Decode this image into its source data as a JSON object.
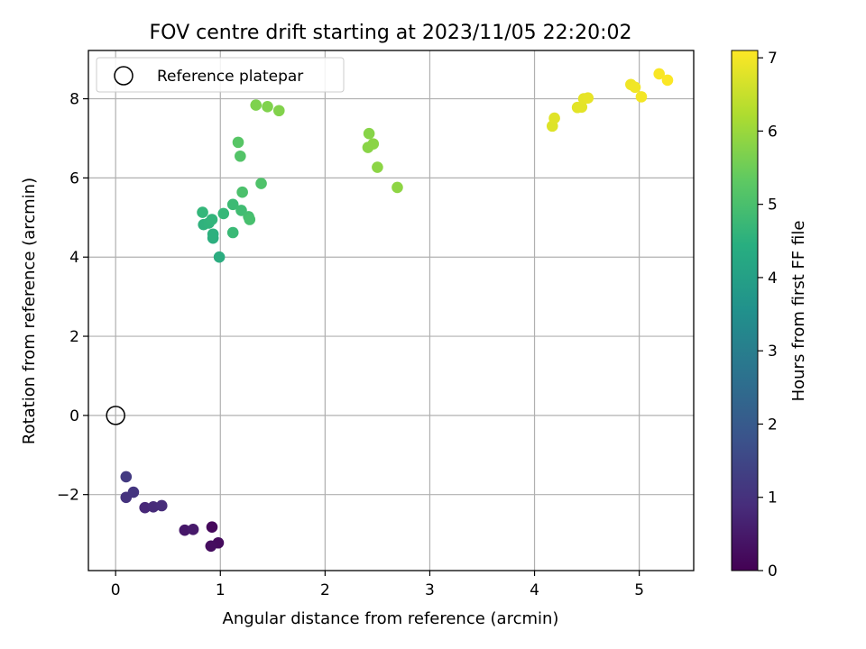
{
  "chart_data": {
    "type": "scatter",
    "title": "FOV centre drift starting at 2023/11/05 22:20:02",
    "xlabel": "Angular distance from reference (arcmin)",
    "ylabel": "Rotation from reference (arcmin)",
    "xlim": [
      -0.26,
      5.52
    ],
    "ylim": [
      -3.92,
      9.22
    ],
    "x_ticks": [
      0,
      1,
      2,
      3,
      4,
      5
    ],
    "y_ticks": [
      -2,
      0,
      2,
      4,
      6,
      8
    ],
    "grid": true,
    "legend": {
      "placement": "top-left",
      "entries": [
        "Reference platepar"
      ]
    },
    "reference": {
      "x": 0,
      "y": 0
    },
    "colorbar": {
      "label": "Hours from first FF file",
      "range": [
        0,
        7.1
      ],
      "ticks": [
        0,
        1,
        2,
        3,
        4,
        5,
        6,
        7
      ],
      "colormap": "viridis"
    },
    "points": [
      {
        "x": 0.92,
        "y": -2.82,
        "h": 0.15
      },
      {
        "x": 0.98,
        "y": -3.22,
        "h": 0.2
      },
      {
        "x": 0.91,
        "y": -3.3,
        "h": 0.25
      },
      {
        "x": 0.66,
        "y": -2.9,
        "h": 0.45
      },
      {
        "x": 0.74,
        "y": -2.88,
        "h": 0.5
      },
      {
        "x": 0.28,
        "y": -2.33,
        "h": 0.8
      },
      {
        "x": 0.36,
        "y": -2.31,
        "h": 0.85
      },
      {
        "x": 0.44,
        "y": -2.28,
        "h": 0.9
      },
      {
        "x": 0.1,
        "y": -2.07,
        "h": 1.05
      },
      {
        "x": 0.17,
        "y": -1.94,
        "h": 1.1
      },
      {
        "x": 0.1,
        "y": -1.55,
        "h": 1.2
      },
      {
        "x": 0.99,
        "y": 4.0,
        "h": 4.4
      },
      {
        "x": 0.93,
        "y": 4.48,
        "h": 4.45
      },
      {
        "x": 0.93,
        "y": 4.58,
        "h": 4.5
      },
      {
        "x": 0.84,
        "y": 4.82,
        "h": 4.55
      },
      {
        "x": 0.89,
        "y": 4.86,
        "h": 4.6
      },
      {
        "x": 0.92,
        "y": 4.95,
        "h": 4.65
      },
      {
        "x": 0.83,
        "y": 5.13,
        "h": 4.7
      },
      {
        "x": 1.03,
        "y": 5.1,
        "h": 4.75
      },
      {
        "x": 1.12,
        "y": 4.62,
        "h": 4.8
      },
      {
        "x": 1.12,
        "y": 5.33,
        "h": 4.85
      },
      {
        "x": 1.2,
        "y": 5.18,
        "h": 4.9
      },
      {
        "x": 1.27,
        "y": 5.02,
        "h": 4.95
      },
      {
        "x": 1.28,
        "y": 4.95,
        "h": 5.0
      },
      {
        "x": 1.21,
        "y": 5.64,
        "h": 5.05
      },
      {
        "x": 1.39,
        "y": 5.86,
        "h": 5.1
      },
      {
        "x": 1.19,
        "y": 6.55,
        "h": 5.15
      },
      {
        "x": 1.17,
        "y": 6.9,
        "h": 5.2
      },
      {
        "x": 1.34,
        "y": 7.84,
        "h": 5.7
      },
      {
        "x": 1.45,
        "y": 7.8,
        "h": 5.72
      },
      {
        "x": 1.56,
        "y": 7.7,
        "h": 5.74
      },
      {
        "x": 2.42,
        "y": 7.12,
        "h": 5.8
      },
      {
        "x": 2.41,
        "y": 6.77,
        "h": 5.82
      },
      {
        "x": 2.46,
        "y": 6.86,
        "h": 5.84
      },
      {
        "x": 2.5,
        "y": 6.27,
        "h": 5.86
      },
      {
        "x": 2.69,
        "y": 5.76,
        "h": 5.88
      },
      {
        "x": 4.17,
        "y": 7.31,
        "h": 6.75
      },
      {
        "x": 4.19,
        "y": 7.51,
        "h": 6.78
      },
      {
        "x": 4.41,
        "y": 7.78,
        "h": 6.8
      },
      {
        "x": 4.45,
        "y": 7.79,
        "h": 6.82
      },
      {
        "x": 4.47,
        "y": 8.0,
        "h": 6.84
      },
      {
        "x": 4.51,
        "y": 8.02,
        "h": 6.86
      },
      {
        "x": 4.92,
        "y": 8.36,
        "h": 6.95
      },
      {
        "x": 4.96,
        "y": 8.29,
        "h": 6.97
      },
      {
        "x": 5.02,
        "y": 8.05,
        "h": 6.99
      },
      {
        "x": 5.19,
        "y": 8.63,
        "h": 7.05
      },
      {
        "x": 5.27,
        "y": 8.47,
        "h": 7.08
      }
    ]
  }
}
